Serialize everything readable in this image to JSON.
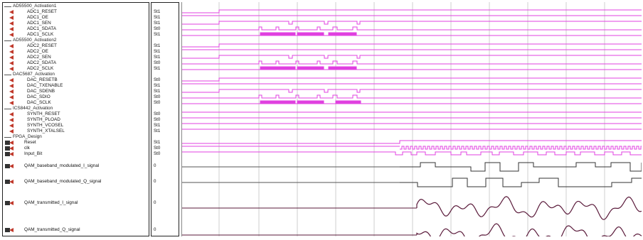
{
  "groups": [
    {
      "name": "AD55500_Activation1",
      "signals": [
        {
          "name": "ADC1_RESET",
          "value": "St1"
        },
        {
          "name": "ADC1_OE",
          "value": "St1"
        },
        {
          "name": "ADC1_SEN",
          "value": "St1"
        },
        {
          "name": "ADC1_SDATA",
          "value": "St0"
        },
        {
          "name": "ADC1_SCLK",
          "value": "St1"
        }
      ]
    },
    {
      "name": "AD55500_Activation2",
      "signals": [
        {
          "name": "ADC2_RESET",
          "value": "St1"
        },
        {
          "name": "ADC2_OE",
          "value": "St1"
        },
        {
          "name": "ADC2_SEN",
          "value": "St1"
        },
        {
          "name": "ADC2_SDATA",
          "value": "St0"
        },
        {
          "name": "ADC2_SCLK",
          "value": "St1"
        }
      ]
    },
    {
      "name": "DAC5687_Activation",
      "signals": [
        {
          "name": "DAC_RESETB",
          "value": "St0"
        },
        {
          "name": "DAC_TXENABLE",
          "value": "St1"
        },
        {
          "name": "DAC_SDENB",
          "value": "St1"
        },
        {
          "name": "DAC_SDIO",
          "value": "St0"
        },
        {
          "name": "DAC_SCLK",
          "value": "St0"
        }
      ]
    },
    {
      "name": "ICS8442_Activation",
      "signals": [
        {
          "name": "SYNTH_RESET",
          "value": "St0"
        },
        {
          "name": "SYNTH_PLOAD",
          "value": "St0"
        },
        {
          "name": "SYNTH_VCOSEL",
          "value": "St1"
        },
        {
          "name": "SYNTH_XTALSEL",
          "value": "St1"
        }
      ]
    },
    {
      "name": "FPGA_Design",
      "signals": [
        {
          "name": "Reset",
          "value": "St1"
        },
        {
          "name": "clk",
          "value": "St0"
        },
        {
          "name": "Input_Bit",
          "value": "St0"
        }
      ]
    }
  ],
  "buses": [
    {
      "name": "QAM_baseband_modulated_I_signal",
      "value": "0"
    },
    {
      "name": "QAM_baseband_modulated_Q_signal",
      "value": "0"
    },
    {
      "name": "QAM_transmitted_I_signal",
      "value": "0"
    },
    {
      "name": "QAM_transmitted_Q_signal",
      "value": "0"
    }
  ],
  "colors": {
    "wave": "#e040e0",
    "analog": "#5a1a3a",
    "grid": "#cfcfcf",
    "arrow": "#c0392b"
  }
}
